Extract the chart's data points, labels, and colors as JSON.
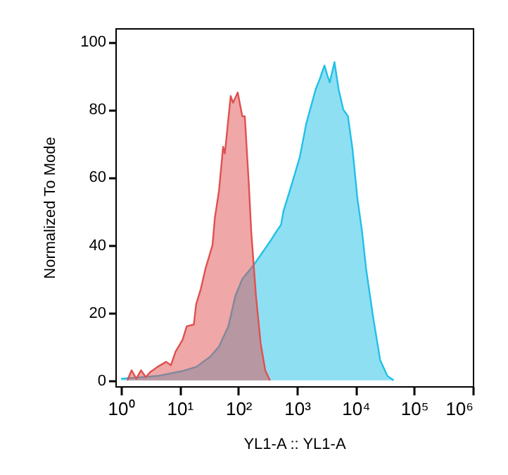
{
  "chart_data": {
    "type": "area",
    "xlabel": "YL1-A :: YL1-A",
    "ylabel": "Normalized To Mode",
    "log": "x",
    "xlim": [
      0.8,
      1000000
    ],
    "ylim": [
      -1.7,
      104
    ],
    "xticks": [
      {
        "value": 1,
        "label": "10⁰"
      },
      {
        "value": 10,
        "label": "10¹"
      },
      {
        "value": 100,
        "label": "10²"
      },
      {
        "value": 1000,
        "label": "10³"
      },
      {
        "value": 10000,
        "label": "10⁴"
      },
      {
        "value": 100000,
        "label": "10⁵"
      },
      {
        "value": 1000000,
        "label": "10⁶"
      }
    ],
    "yticks": [
      0,
      20,
      40,
      60,
      80,
      100
    ],
    "grid": false,
    "series": [
      {
        "color": "#20c0e8",
        "x": [
          1,
          4.47,
          11.2,
          19.1,
          33.1,
          46.8,
          67.6,
          89.1,
          117,
          182,
          347,
          447,
          537,
          589,
          851,
          1120,
          1450,
          2090,
          2450,
          2950,
          3310,
          3630,
          4370,
          5130,
          6170,
          7410,
          8910,
          10700,
          12900,
          15100,
          20000,
          26300,
          34700,
          44700
        ],
        "values": [
          0.5,
          1.4,
          2.8,
          4,
          7,
          10,
          16,
          25,
          30,
          34,
          41,
          44,
          46,
          50,
          59,
          66,
          76,
          86,
          89,
          93,
          90,
          88,
          94,
          86,
          80,
          78,
          68,
          54,
          44,
          33,
          18.5,
          6,
          1.4,
          0
        ]
      },
      {
        "color": "#e05050",
        "x": [
          1.28,
          1.51,
          1.82,
          2.19,
          2.63,
          3.16,
          4.17,
          5.89,
          7.08,
          8.51,
          11.2,
          13.2,
          17.4,
          19.1,
          22.9,
          27.5,
          36.3,
          39.8,
          46.8,
          55,
          58.9,
          74.1,
          81.3,
          97.7,
          117,
          129,
          151,
          166,
          200,
          240,
          288,
          347
        ],
        "values": [
          0,
          3,
          0.5,
          3,
          1,
          2.5,
          4,
          5.5,
          4.5,
          8.5,
          12,
          16,
          16.5,
          22.5,
          27,
          33,
          40,
          48,
          56,
          69,
          67,
          84,
          82,
          85,
          78,
          78,
          58,
          44,
          25,
          11,
          3,
          0
        ]
      }
    ]
  }
}
